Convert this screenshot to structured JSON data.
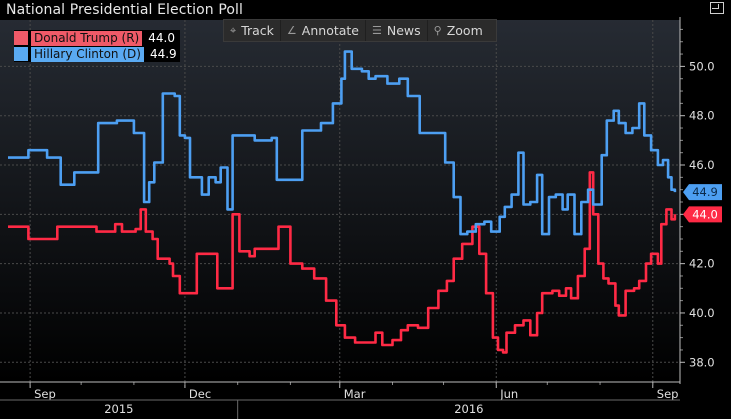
{
  "title": "National Presidential Election Poll",
  "toolbar": {
    "track": {
      "label": "Track",
      "icon": "crosshair-icon"
    },
    "annotate": {
      "label": "Annotate",
      "icon": "pencil-icon"
    },
    "news": {
      "label": "News",
      "icon": "news-icon"
    },
    "zoom": {
      "label": "Zoom",
      "icon": "magnifier-icon"
    }
  },
  "legend": {
    "trump": {
      "name": "Donald Trump (R)",
      "value": "44.0",
      "color": "#f05a68"
    },
    "clinton": {
      "name": "Hillary Clinton (D)",
      "value": "44.9",
      "color": "#5aaaf2"
    }
  },
  "colors": {
    "trump_line": "#ff2a45",
    "clinton_line": "#4d9ff2",
    "background": "#000000",
    "grid": "#4a4a4a"
  },
  "chart_data": {
    "type": "line",
    "title": "National Presidential Election Poll",
    "x_tick_labels": [
      "Sep",
      "Dec",
      "Mar",
      "Jun",
      "Sep"
    ],
    "x_year_labels": [
      "2015",
      "2016"
    ],
    "y_tick_labels": [
      "38.0",
      "40.0",
      "42.0",
      "44.0",
      "46.0",
      "48.0",
      "50.0"
    ],
    "ylim": [
      37.2,
      51.8
    ],
    "xlim": [
      "2015-08-19",
      "2016-09-17"
    ],
    "grid": true,
    "y_axis_side": "right",
    "last_value_labels": {
      "trump": "44.0",
      "clinton": "44.9"
    },
    "series": [
      {
        "name": "Donald Trump (R)",
        "color": "#ff2a45",
        "points": [
          [
            "2015-08-19",
            43.5
          ],
          [
            "2015-08-29",
            43.5
          ],
          [
            "2015-08-31",
            43.0
          ],
          [
            "2015-09-15",
            43.0
          ],
          [
            "2015-09-17",
            43.5
          ],
          [
            "2015-10-08",
            43.5
          ],
          [
            "2015-10-10",
            43.3
          ],
          [
            "2015-10-19",
            43.3
          ],
          [
            "2015-10-21",
            43.6
          ],
          [
            "2015-10-25",
            43.3
          ],
          [
            "2015-11-02",
            43.4
          ],
          [
            "2015-11-05",
            44.2
          ],
          [
            "2015-11-08",
            43.3
          ],
          [
            "2015-11-12",
            43.0
          ],
          [
            "2015-11-15",
            42.2
          ],
          [
            "2015-11-22",
            42.0
          ],
          [
            "2015-11-24",
            41.5
          ],
          [
            "2015-11-28",
            40.8
          ],
          [
            "2015-12-06",
            40.8
          ],
          [
            "2015-12-08",
            42.4
          ],
          [
            "2015-12-18",
            42.4
          ],
          [
            "2015-12-20",
            41.0
          ],
          [
            "2015-12-26",
            41.0
          ],
          [
            "2015-12-29",
            44.0
          ],
          [
            "2016-01-02",
            42.5
          ],
          [
            "2016-01-08",
            42.3
          ],
          [
            "2016-01-11",
            42.6
          ],
          [
            "2016-01-23",
            42.6
          ],
          [
            "2016-01-25",
            43.5
          ],
          [
            "2016-02-01",
            42.0
          ],
          [
            "2016-02-08",
            41.8
          ],
          [
            "2016-02-15",
            41.4
          ],
          [
            "2016-02-22",
            40.5
          ],
          [
            "2016-02-28",
            39.5
          ],
          [
            "2016-03-04",
            39.0
          ],
          [
            "2016-03-10",
            38.8
          ],
          [
            "2016-03-18",
            38.8
          ],
          [
            "2016-03-22",
            39.2
          ],
          [
            "2016-03-26",
            38.7
          ],
          [
            "2016-04-01",
            38.9
          ],
          [
            "2016-04-06",
            39.3
          ],
          [
            "2016-04-10",
            39.5
          ],
          [
            "2016-04-16",
            39.4
          ],
          [
            "2016-04-22",
            40.2
          ],
          [
            "2016-04-28",
            40.9
          ],
          [
            "2016-05-03",
            41.3
          ],
          [
            "2016-05-07",
            42.2
          ],
          [
            "2016-05-12",
            42.8
          ],
          [
            "2016-05-18",
            43.5
          ],
          [
            "2016-05-22",
            42.4
          ],
          [
            "2016-05-26",
            40.8
          ],
          [
            "2016-05-30",
            39.0
          ],
          [
            "2016-06-02",
            38.5
          ],
          [
            "2016-06-05",
            38.4
          ],
          [
            "2016-06-07",
            39.2
          ],
          [
            "2016-06-12",
            39.5
          ],
          [
            "2016-06-17",
            39.7
          ],
          [
            "2016-06-21",
            39.1
          ],
          [
            "2016-06-25",
            40.0
          ],
          [
            "2016-06-28",
            40.8
          ],
          [
            "2016-07-04",
            40.9
          ],
          [
            "2016-07-08",
            40.7
          ],
          [
            "2016-07-12",
            41.0
          ],
          [
            "2016-07-15",
            40.6
          ],
          [
            "2016-07-19",
            41.5
          ],
          [
            "2016-07-23",
            42.6
          ],
          [
            "2016-07-26",
            45.7
          ],
          [
            "2016-07-28",
            44.0
          ],
          [
            "2016-07-31",
            42.0
          ],
          [
            "2016-08-03",
            41.4
          ],
          [
            "2016-08-06",
            41.2
          ],
          [
            "2016-08-10",
            40.3
          ],
          [
            "2016-08-12",
            39.9
          ],
          [
            "2016-08-16",
            40.9
          ],
          [
            "2016-08-21",
            41.0
          ],
          [
            "2016-08-24",
            41.3
          ],
          [
            "2016-08-28",
            42.0
          ],
          [
            "2016-08-31",
            42.4
          ],
          [
            "2016-09-04",
            42.0
          ],
          [
            "2016-09-06",
            43.6
          ],
          [
            "2016-09-09",
            44.2
          ],
          [
            "2016-09-12",
            43.8
          ],
          [
            "2016-09-14",
            44.0
          ]
        ]
      },
      {
        "name": "Hillary Clinton (D)",
        "color": "#4d9ff2",
        "points": [
          [
            "2015-08-19",
            46.3
          ],
          [
            "2015-08-29",
            46.3
          ],
          [
            "2015-08-31",
            46.6
          ],
          [
            "2015-09-09",
            46.6
          ],
          [
            "2015-09-11",
            46.3
          ],
          [
            "2015-09-16",
            46.3
          ],
          [
            "2015-09-19",
            45.2
          ],
          [
            "2015-09-25",
            45.2
          ],
          [
            "2015-09-27",
            45.7
          ],
          [
            "2015-10-08",
            45.7
          ],
          [
            "2015-10-11",
            47.7
          ],
          [
            "2015-10-20",
            47.7
          ],
          [
            "2015-10-22",
            47.8
          ],
          [
            "2015-10-30",
            47.8
          ],
          [
            "2015-11-01",
            47.3
          ],
          [
            "2015-11-05",
            47.3
          ],
          [
            "2015-11-07",
            44.5
          ],
          [
            "2015-11-10",
            45.3
          ],
          [
            "2015-11-13",
            46.1
          ],
          [
            "2015-11-16",
            46.1
          ],
          [
            "2015-11-18",
            48.9
          ],
          [
            "2015-11-25",
            48.8
          ],
          [
            "2015-11-28",
            47.2
          ],
          [
            "2015-12-01",
            47.1
          ],
          [
            "2015-12-04",
            45.5
          ],
          [
            "2015-12-11",
            44.8
          ],
          [
            "2015-12-15",
            45.5
          ],
          [
            "2015-12-19",
            45.3
          ],
          [
            "2015-12-22",
            45.9
          ],
          [
            "2015-12-26",
            44.2
          ],
          [
            "2015-12-29",
            47.2
          ],
          [
            "2016-01-08",
            47.2
          ],
          [
            "2016-01-11",
            47.0
          ],
          [
            "2016-01-21",
            47.1
          ],
          [
            "2016-01-24",
            45.4
          ],
          [
            "2016-02-05",
            45.4
          ],
          [
            "2016-02-08",
            47.4
          ],
          [
            "2016-02-14",
            47.4
          ],
          [
            "2016-02-19",
            47.7
          ],
          [
            "2016-02-26",
            48.5
          ],
          [
            "2016-03-02",
            49.5
          ],
          [
            "2016-03-04",
            50.6
          ],
          [
            "2016-03-08",
            49.9
          ],
          [
            "2016-03-14",
            49.8
          ],
          [
            "2016-03-18",
            49.5
          ],
          [
            "2016-03-22",
            49.6
          ],
          [
            "2016-03-29",
            49.3
          ],
          [
            "2016-04-05",
            49.5
          ],
          [
            "2016-04-10",
            48.8
          ],
          [
            "2016-04-17",
            47.3
          ],
          [
            "2016-04-27",
            47.3
          ],
          [
            "2016-05-02",
            46.1
          ],
          [
            "2016-05-07",
            44.7
          ],
          [
            "2016-05-11",
            43.2
          ],
          [
            "2016-05-15",
            43.3
          ],
          [
            "2016-05-20",
            43.6
          ],
          [
            "2016-05-25",
            43.7
          ],
          [
            "2016-05-29",
            43.3
          ],
          [
            "2016-06-03",
            43.9
          ],
          [
            "2016-06-06",
            44.3
          ],
          [
            "2016-06-10",
            44.8
          ],
          [
            "2016-06-14",
            46.5
          ],
          [
            "2016-06-17",
            44.4
          ],
          [
            "2016-06-21",
            44.5
          ],
          [
            "2016-06-25",
            45.6
          ],
          [
            "2016-06-28",
            43.2
          ],
          [
            "2016-07-02",
            44.7
          ],
          [
            "2016-07-06",
            44.8
          ],
          [
            "2016-07-10",
            44.2
          ],
          [
            "2016-07-13",
            44.8
          ],
          [
            "2016-07-17",
            43.2
          ],
          [
            "2016-07-21",
            44.5
          ],
          [
            "2016-07-25",
            45.0
          ],
          [
            "2016-07-28",
            44.4
          ],
          [
            "2016-08-02",
            46.4
          ],
          [
            "2016-08-05",
            47.8
          ],
          [
            "2016-08-09",
            48.2
          ],
          [
            "2016-08-12",
            47.7
          ],
          [
            "2016-08-16",
            47.3
          ],
          [
            "2016-08-20",
            47.5
          ],
          [
            "2016-08-24",
            48.5
          ],
          [
            "2016-08-27",
            47.2
          ],
          [
            "2016-08-31",
            46.6
          ],
          [
            "2016-09-04",
            46.0
          ],
          [
            "2016-09-07",
            46.2
          ],
          [
            "2016-09-10",
            45.5
          ],
          [
            "2016-09-12",
            45.0
          ],
          [
            "2016-09-14",
            44.9
          ]
        ]
      }
    ]
  }
}
